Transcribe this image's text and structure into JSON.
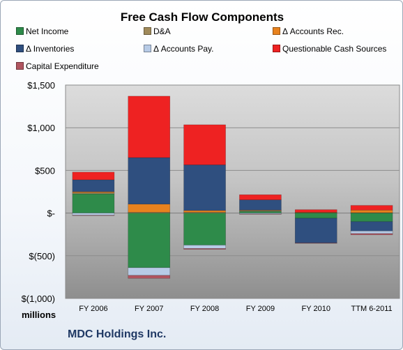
{
  "colors": {
    "Net Income": "#2e8b4a",
    "D&A": "#a08a5a",
    "Δ Accounts Rec.": "#e8821e",
    "Δ Inventories": "#2f4f7f",
    "Δ Accounts Pay.": "#b7cbe6",
    "Questionable Cash Sources": "#ee2222",
    "Capital Expenditure": "#b05560"
  },
  "chart_data": {
    "type": "bar",
    "stacked": true,
    "title": "Free Cash Flow Components",
    "categories": [
      "FY 2006",
      "FY 2007",
      "FY 2008",
      "FY 2009",
      "FY 2010",
      "TTM 6-2011"
    ],
    "ylim": [
      -1000,
      1500
    ],
    "y_ticks": [
      -1000,
      -500,
      0,
      500,
      1000,
      1500
    ],
    "y_tick_labels": [
      "$(1,000)",
      "$(500)",
      "$-",
      "$500",
      "$1,000",
      "$1,500"
    ],
    "units_label": "millions",
    "grid": true,
    "legend_position": "top",
    "series": [
      {
        "name": "Net Income",
        "values": [
          225,
          -640,
          -375,
          20,
          -60,
          -100
        ]
      },
      {
        "name": "D&A",
        "values": [
          15,
          10,
          10,
          10,
          5,
          5
        ]
      },
      {
        "name": "Δ Accounts Rec.",
        "values": [
          10,
          95,
          20,
          5,
          5,
          30
        ]
      },
      {
        "name": "Δ Inventories",
        "values": [
          140,
          545,
          535,
          120,
          -290,
          -110
        ]
      },
      {
        "name": "Δ Accounts Pay.",
        "values": [
          -25,
          -90,
          -40,
          -10,
          0,
          -30
        ]
      },
      {
        "name": "Questionable Cash Sources",
        "values": [
          90,
          720,
          470,
          60,
          30,
          55
        ]
      },
      {
        "name": "Capital Expenditure",
        "values": [
          -5,
          -35,
          -10,
          -5,
          -5,
          -15
        ]
      }
    ]
  },
  "footer": {
    "company": "MDC Holdings Inc."
  }
}
